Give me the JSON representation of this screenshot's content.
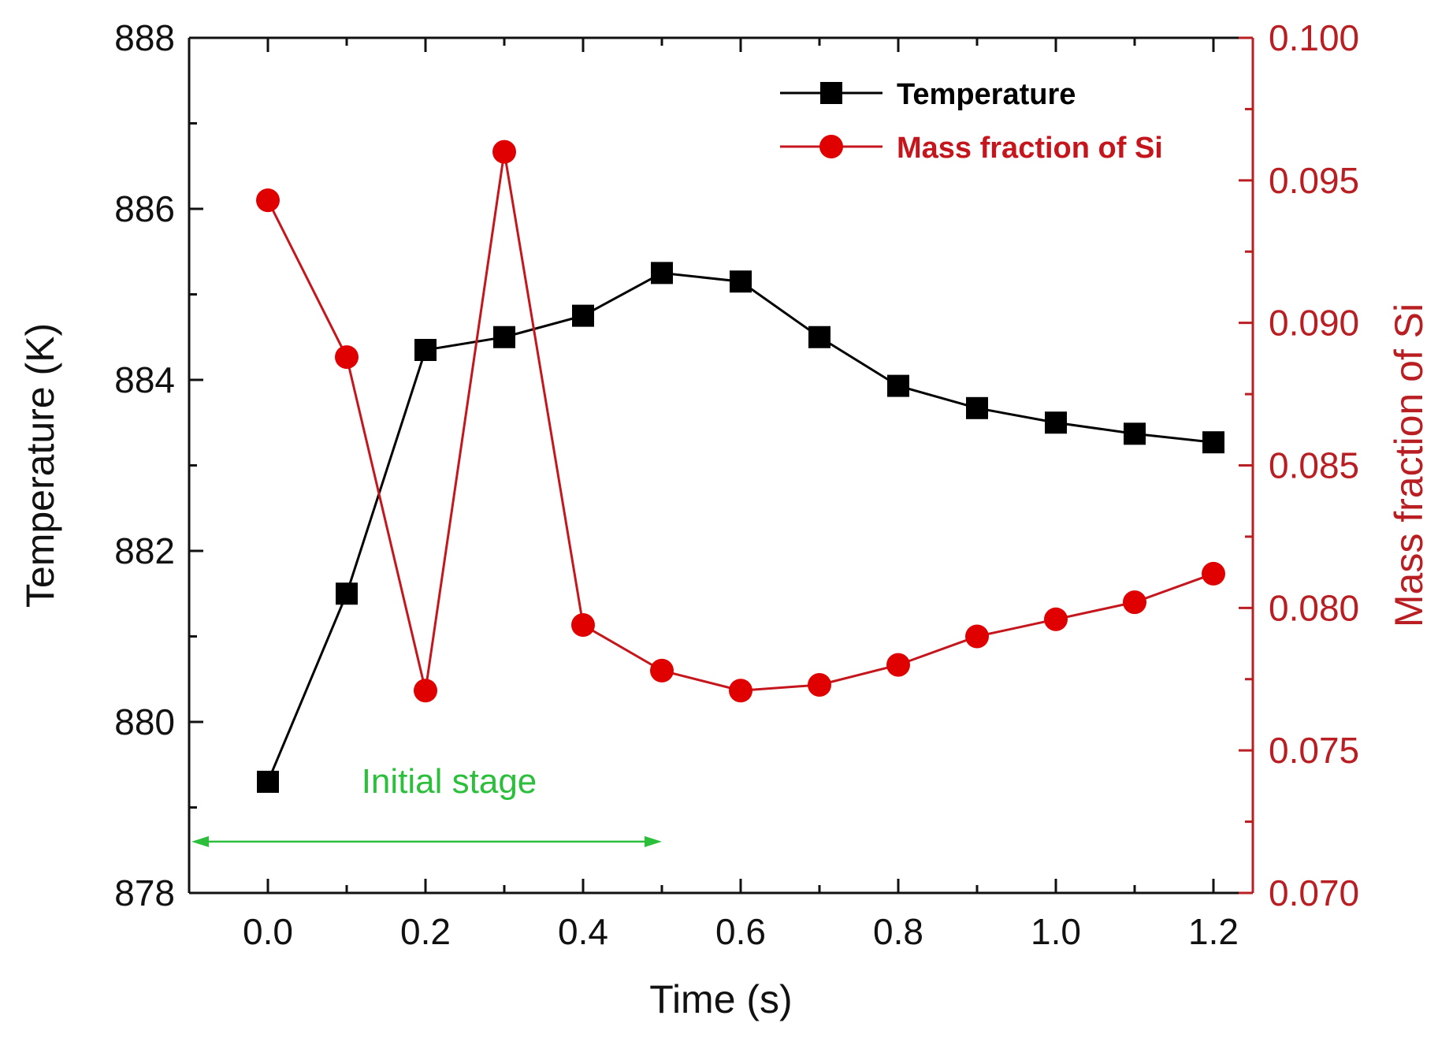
{
  "chart_data": {
    "type": "line",
    "title": "",
    "xlabel": "Time (s)",
    "ylabel": "Temperature (K)",
    "y2label": "Mass fraction of Si",
    "xlim": [
      -0.1,
      1.25
    ],
    "ylim": [
      878,
      888
    ],
    "y2lim": [
      0.07,
      0.1
    ],
    "x_ticks": [
      0.0,
      0.2,
      0.4,
      0.6,
      0.8,
      1.0,
      1.2
    ],
    "x_tick_labels": [
      "0.0",
      "0.2",
      "0.4",
      "0.6",
      "0.8",
      "1.0",
      "1.2"
    ],
    "y_ticks": [
      878,
      880,
      882,
      884,
      886,
      888
    ],
    "y_tick_labels": [
      "878",
      "880",
      "882",
      "884",
      "886",
      "888"
    ],
    "y2_ticks": [
      0.07,
      0.075,
      0.08,
      0.085,
      0.09,
      0.095,
      0.1
    ],
    "y2_tick_labels": [
      "0.070",
      "0.075",
      "0.080",
      "0.085",
      "0.090",
      "0.095",
      "0.100"
    ],
    "grid": false,
    "legend_position": "top-right",
    "x": [
      0.0,
      0.1,
      0.2,
      0.3,
      0.4,
      0.5,
      0.6,
      0.7,
      0.8,
      0.9,
      1.0,
      1.1,
      1.2
    ],
    "series": [
      {
        "name": "Temperature",
        "axis": "left",
        "marker": "square",
        "color": "#000000",
        "values": [
          879.3,
          881.5,
          884.35,
          884.5,
          884.75,
          885.25,
          885.15,
          884.5,
          883.93,
          883.67,
          883.5,
          883.37,
          883.27
        ]
      },
      {
        "name": "Mass fraction of Si",
        "axis": "right",
        "marker": "circle",
        "color": "#e00000",
        "line_color": "#c4161c",
        "values": [
          0.0943,
          0.0888,
          0.0771,
          0.096,
          0.0794,
          0.0778,
          0.0771,
          0.0773,
          0.078,
          0.079,
          0.0796,
          0.0802,
          0.0812
        ]
      }
    ],
    "annotations": [
      {
        "text": "Initial stage",
        "color": "#2bbf3b",
        "arrow_from_x": -0.1,
        "arrow_to_x": 0.5,
        "arrow_y": 878.6
      }
    ],
    "colors": {
      "axis_left": "#111111",
      "axis_right": "#b81e22",
      "legend_right_text": "#c4161c"
    }
  }
}
